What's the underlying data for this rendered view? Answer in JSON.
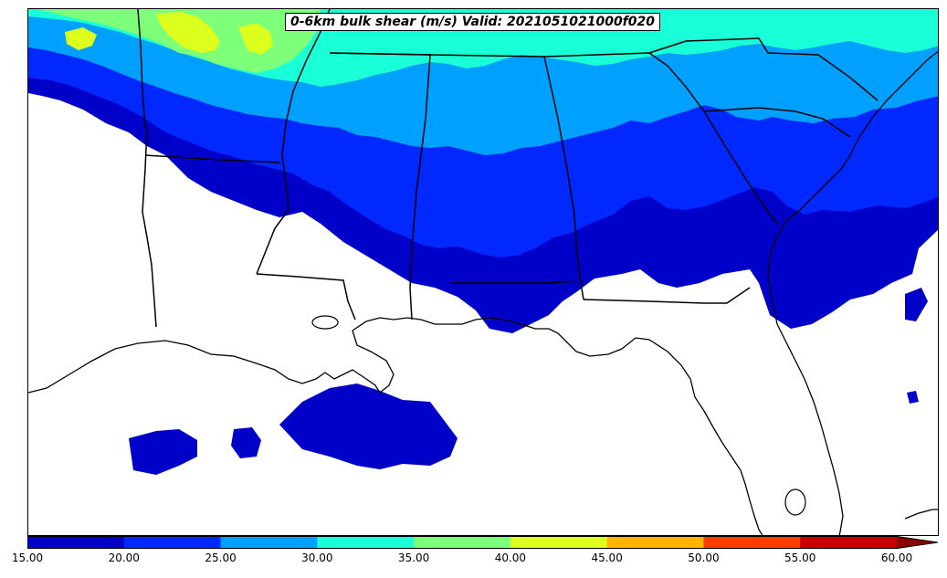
{
  "title": "0-6km bulk shear (m/s) Valid: 2021051021000f020",
  "colorbar": {
    "levels": [
      "15.00",
      "20.00",
      "25.00",
      "30.00",
      "35.00",
      "40.00",
      "45.00",
      "50.00",
      "55.00",
      "60.00"
    ],
    "colors": [
      "#0000c8",
      "#0028ff",
      "#00a0ff",
      "#19ffd8",
      "#7dff7a",
      "#dcff1e",
      "#ffb400",
      "#ff3c00",
      "#c80000"
    ],
    "extend": "max",
    "extend_color": "#8c0000"
  },
  "map_layers": {
    "fill_15_20": "#0000c8",
    "fill_20_25": "#0028ff",
    "fill_25_30": "#00a0ff",
    "fill_30_35": "#19ffd8",
    "fill_35_40": "#7dff7a",
    "fill_40_45": "#dcff1e",
    "coastline_color": "#000000",
    "state_border_color": "#000000"
  }
}
